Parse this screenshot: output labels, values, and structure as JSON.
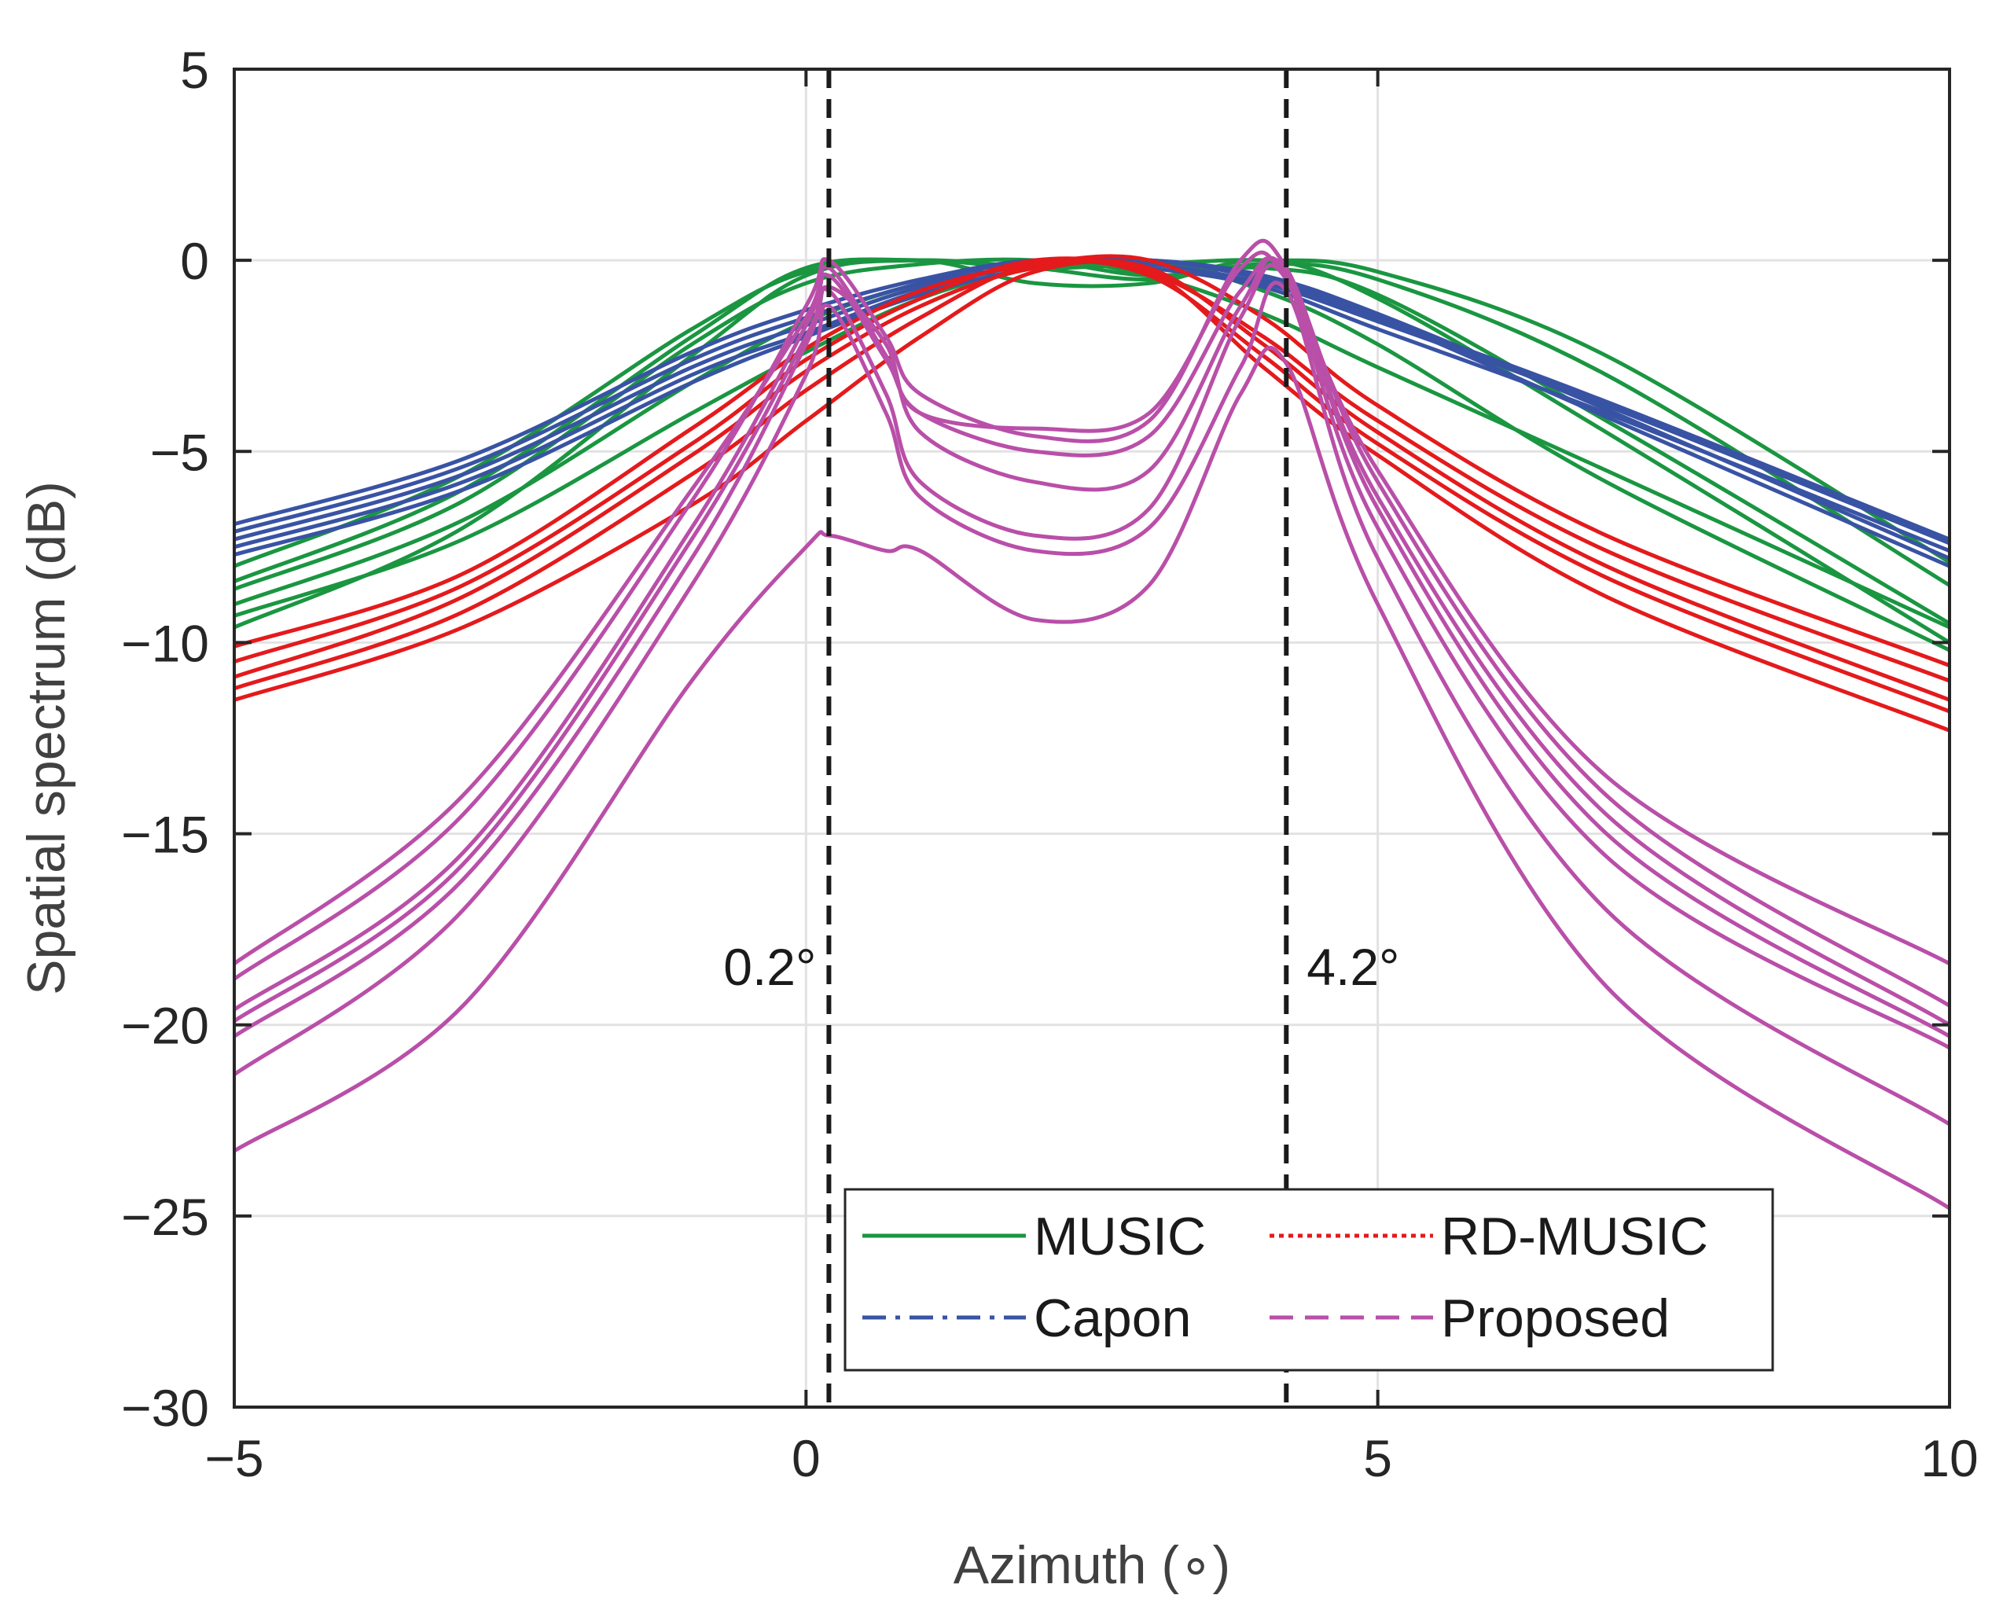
{
  "chart_data": {
    "type": "line",
    "xlabel": "Azimuth (∘)",
    "ylabel": "Spatial spectrum (dB)",
    "xlim": [
      -5,
      10
    ],
    "ylim": [
      -30,
      5
    ],
    "xticks": [
      -5,
      0,
      5,
      10
    ],
    "yticks": [
      5,
      0,
      -5,
      -10,
      -15,
      -20,
      -25,
      -30
    ],
    "xtick_labels": [
      "−5",
      "0",
      "5",
      "10"
    ],
    "ytick_labels": [
      "5",
      "0",
      "−5",
      "−10",
      "−15",
      "−20",
      "−25",
      "−30"
    ],
    "grid": true,
    "legend_position": "bottom-center",
    "reference_lines": [
      {
        "x": 0.2,
        "label": "0.2°",
        "style": "dashed",
        "color": "#1a1a1a"
      },
      {
        "x": 4.2,
        "label": "4.2°",
        "style": "dashed",
        "color": "#1a1a1a"
      }
    ],
    "series": [
      {
        "name": "MUSIC",
        "style": "solid",
        "color": "#1a9641",
        "curves": [
          {
            "x": [
              -5,
              -3,
              -1,
              0,
              1,
              2,
              3,
              4,
              5,
              7,
              10
            ],
            "y": [
              -9.6,
              -7.0,
              -2.5,
              -0.4,
              0,
              -0.6,
              -0.6,
              0,
              -1.0,
              -4.5,
              -10.0
            ]
          },
          {
            "x": [
              -5,
              -3,
              -1,
              0,
              1,
              2,
              3,
              4,
              5,
              7,
              10
            ],
            "y": [
              -8.6,
              -6.3,
              -2.2,
              -0.6,
              -0.1,
              0,
              -0.4,
              -0.2,
              -0.9,
              -4.2,
              -9.5
            ]
          },
          {
            "x": [
              -5,
              -3,
              -1,
              0,
              1,
              2,
              3,
              4,
              5,
              7,
              10
            ],
            "y": [
              -8.0,
              -5.6,
              -1.8,
              -0.3,
              0,
              -0.2,
              -0.5,
              -0.1,
              -0.5,
              -3.0,
              -8.5
            ]
          },
          {
            "x": [
              -5,
              -3,
              -1,
              0,
              1,
              2,
              3,
              4,
              5,
              7,
              10
            ],
            "y": [
              -9.0,
              -6.8,
              -3.2,
              -1.6,
              -0.6,
              0,
              -0.4,
              -1.4,
              -2.8,
              -5.5,
              -9.6
            ]
          },
          {
            "x": [
              -5,
              -3,
              -1,
              0,
              1,
              2,
              3,
              4,
              5,
              7,
              10
            ],
            "y": [
              -9.3,
              -7.3,
              -4.0,
              -2.4,
              -1.0,
              -0.2,
              0,
              -0.8,
              -2.2,
              -5.8,
              -10.2
            ]
          },
          {
            "x": [
              -5,
              -3,
              -1,
              0,
              1,
              2,
              3,
              4,
              5,
              7,
              10
            ],
            "y": [
              -8.4,
              -6.0,
              -2.0,
              -0.2,
              0,
              -0.2,
              -0.1,
              0,
              -0.3,
              -2.5,
              -7.9
            ]
          }
        ]
      },
      {
        "name": "Capon",
        "style": "dashdot",
        "color": "#3953a4",
        "curves": [
          {
            "x": [
              -5,
              -3,
              -1,
              0,
              1,
              2,
              3,
              4,
              5,
              7,
              10
            ],
            "y": [
              -6.9,
              -5.2,
              -2.4,
              -1.3,
              -0.5,
              0,
              -0.2,
              -0.7,
              -1.8,
              -4.0,
              -7.6
            ]
          },
          {
            "x": [
              -5,
              -3,
              -1,
              0,
              1,
              2,
              3,
              4,
              5,
              7,
              10
            ],
            "y": [
              -7.1,
              -5.4,
              -2.6,
              -1.5,
              -0.6,
              0,
              -0.1,
              -0.6,
              -1.6,
              -3.8,
              -7.4
            ]
          },
          {
            "x": [
              -5,
              -3,
              -1,
              0,
              1,
              2,
              3,
              4,
              5,
              7,
              10
            ],
            "y": [
              -7.3,
              -5.6,
              -2.8,
              -1.7,
              -0.7,
              -0.1,
              0,
              -0.5,
              -1.5,
              -3.7,
              -7.3
            ]
          },
          {
            "x": [
              -5,
              -3,
              -1,
              0,
              1,
              2,
              3,
              4,
              5,
              7,
              10
            ],
            "y": [
              -7.5,
              -5.8,
              -3.0,
              -1.9,
              -0.8,
              -0.1,
              0,
              -0.4,
              -1.4,
              -3.9,
              -7.8
            ]
          },
          {
            "x": [
              -5,
              -3,
              -1,
              0,
              1,
              2,
              3,
              4,
              5,
              7,
              10
            ],
            "y": [
              -7.7,
              -6.0,
              -3.2,
              -2.0,
              -0.9,
              -0.2,
              0,
              -0.5,
              -1.5,
              -4.1,
              -8.0
            ]
          }
        ]
      },
      {
        "name": "RD-MUSIC",
        "style": "dotted",
        "color": "#e41a1c",
        "curves": [
          {
            "x": [
              -5,
              -3,
              -1,
              0,
              1,
              2,
              3,
              4,
              5,
              7,
              10
            ],
            "y": [
              -10.1,
              -8.2,
              -4.4,
              -2.3,
              -0.8,
              -0.1,
              0,
              -1.5,
              -3.8,
              -7.2,
              -10.6
            ]
          },
          {
            "x": [
              -5,
              -3,
              -1,
              0,
              1,
              2,
              3,
              4,
              5,
              7,
              10
            ],
            "y": [
              -10.5,
              -8.5,
              -4.8,
              -2.6,
              -1.0,
              0,
              -0.3,
              -2.0,
              -4.2,
              -7.6,
              -11.0
            ]
          },
          {
            "x": [
              -5,
              -3,
              -1,
              0,
              1,
              2,
              3,
              4,
              5,
              7,
              10
            ],
            "y": [
              -10.9,
              -8.8,
              -5.1,
              -2.9,
              -1.2,
              -0.2,
              -0.2,
              -2.2,
              -4.5,
              -8.0,
              -11.5
            ]
          },
          {
            "x": [
              -5,
              -3,
              -1,
              0,
              1,
              2,
              3,
              4,
              5,
              7,
              10
            ],
            "y": [
              -11.2,
              -9.2,
              -5.6,
              -3.4,
              -1.5,
              -0.1,
              -0.4,
              -2.5,
              -4.8,
              -8.3,
              -11.8
            ]
          },
          {
            "x": [
              -5,
              -3,
              -1,
              0,
              1,
              2,
              3,
              4,
              5,
              7,
              10
            ],
            "y": [
              -11.5,
              -9.6,
              -6.4,
              -4.2,
              -2.0,
              -0.3,
              -0.3,
              -2.8,
              -5.1,
              -8.8,
              -12.3
            ]
          }
        ]
      },
      {
        "name": "Proposed",
        "style": "dashed",
        "color": "#b94fa8",
        "curves": [
          {
            "x": [
              -5,
              -3,
              -1,
              0,
              0.2,
              0.7,
              1,
              2,
              3,
              3.8,
              4.2,
              5,
              7,
              10
            ],
            "y": [
              -18.4,
              -14.0,
              -6.0,
              -1.5,
              -0.2,
              -2.5,
              -4.0,
              -4.4,
              -4.0,
              -0.2,
              -0.5,
              -5.5,
              -13.5,
              -18.4
            ]
          },
          {
            "x": [
              -5,
              -3,
              -1,
              0,
              0.2,
              0.7,
              1,
              2,
              3,
              3.8,
              4.2,
              5,
              7,
              10
            ],
            "y": [
              -18.8,
              -14.5,
              -6.3,
              -1.2,
              0,
              -2.0,
              -3.5,
              -4.6,
              -4.2,
              0,
              -0.2,
              -5.8,
              -14.0,
              -19.5
            ]
          },
          {
            "x": [
              -5,
              -3,
              -1,
              0,
              0.2,
              0.7,
              1,
              2,
              3,
              3.8,
              4.2,
              5,
              7,
              10
            ],
            "y": [
              -19.6,
              -15.5,
              -7.0,
              -1.7,
              -0.4,
              -2.6,
              -4.0,
              -5.0,
              -4.6,
              -0.8,
              -0.4,
              -6.2,
              -14.5,
              -20.0
            ]
          },
          {
            "x": [
              -5,
              -3,
              -1,
              0,
              0.2,
              0.7,
              1,
              2,
              3,
              3.8,
              4.2,
              5,
              7,
              10
            ],
            "y": [
              -19.9,
              -15.8,
              -7.3,
              -2.0,
              -0.7,
              -2.2,
              -4.5,
              -5.8,
              -5.5,
              -1.2,
              -0.3,
              -6.5,
              -15.0,
              -20.3
            ]
          },
          {
            "x": [
              -5,
              -3,
              -1,
              0,
              0.2,
              0.7,
              1,
              2,
              3,
              3.8,
              4.2,
              5,
              7,
              10
            ],
            "y": [
              -20.3,
              -16.2,
              -7.8,
              -2.2,
              -0.8,
              -3.5,
              -5.8,
              -7.2,
              -6.5,
              -1.5,
              -0.5,
              -7.0,
              -15.6,
              -20.6
            ]
          },
          {
            "x": [
              -5,
              -3,
              -1,
              0,
              0.2,
              0.7,
              1,
              2,
              3,
              3.8,
              4.2,
              5,
              7,
              10
            ],
            "y": [
              -21.3,
              -17.0,
              -8.5,
              -3.0,
              -1.2,
              -4.0,
              -6.2,
              -7.6,
              -7.0,
              -2.8,
              -0.8,
              -7.8,
              -17.0,
              -22.6
            ]
          },
          {
            "x": [
              -5,
              -3,
              -1,
              0,
              0.2,
              0.7,
              1,
              2,
              3,
              3.8,
              4.2,
              5,
              7,
              10
            ],
            "y": [
              -23.3,
              -19.5,
              -11.0,
              -7.5,
              -7.2,
              -7.6,
              -7.6,
              -9.4,
              -8.5,
              -3.5,
              -2.7,
              -9.0,
              -19.0,
              -24.8
            ]
          }
        ]
      }
    ],
    "legend": [
      {
        "label": "MUSIC",
        "series": "MUSIC"
      },
      {
        "label": "RD-MUSIC",
        "series": "RD-MUSIC"
      },
      {
        "label": "Capon",
        "series": "Capon"
      },
      {
        "label": "Proposed",
        "series": "Proposed"
      }
    ]
  }
}
